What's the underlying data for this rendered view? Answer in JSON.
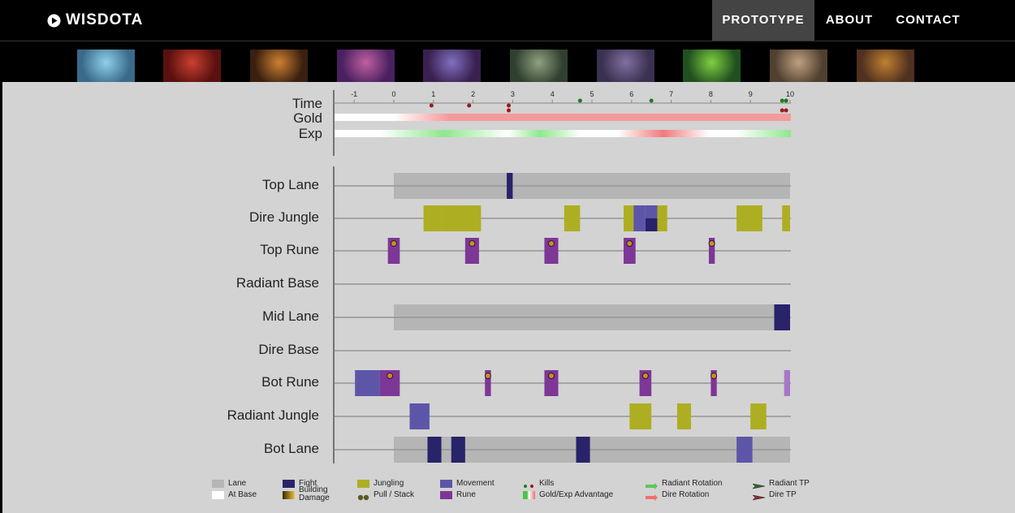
{
  "navbar": {
    "logo_text": "WISDOTA",
    "links": [
      {
        "label": "PROTOTYPE",
        "active": true
      },
      {
        "label": "ABOUT",
        "active": false
      },
      {
        "label": "CONTACT",
        "active": false
      }
    ]
  },
  "heroes": [
    {
      "name": "ancient-apparition",
      "colors": [
        "#3a6a8a",
        "#8fd0e8"
      ]
    },
    {
      "name": "queen-of-pain",
      "colors": [
        "#5a1010",
        "#c84030"
      ]
    },
    {
      "name": "anti-mage",
      "colors": [
        "#3a2010",
        "#d08030"
      ]
    },
    {
      "name": "dazzle",
      "colors": [
        "#4a2060",
        "#c060a0"
      ]
    },
    {
      "name": "faceless-void",
      "colors": [
        "#3a2050",
        "#8070c0"
      ]
    },
    {
      "name": "pugna",
      "colors": [
        "#304030",
        "#90a080"
      ]
    },
    {
      "name": "night-stalker",
      "colors": [
        "#3a3050",
        "#8070a0"
      ]
    },
    {
      "name": "venomancer",
      "colors": [
        "#205020",
        "#80d040"
      ]
    },
    {
      "name": "tusk",
      "colors": [
        "#504030",
        "#c0a080"
      ]
    },
    {
      "name": "alchemist",
      "colors": [
        "#503020",
        "#c08030"
      ]
    }
  ],
  "timeline": {
    "summary_labels": {
      "time": "Time",
      "gold": "Gold",
      "exp": "Exp"
    },
    "ticks": [
      "-1",
      "0",
      "1",
      "2",
      "3",
      "4",
      "5",
      "6",
      "7",
      "8",
      "9",
      "10"
    ],
    "kills": [
      {
        "t": 0.95,
        "side": "dire",
        "stack": 0
      },
      {
        "t": 1.9,
        "side": "dire",
        "stack": 0
      },
      {
        "t": 2.9,
        "side": "dire",
        "stack": 0
      },
      {
        "t": 2.9,
        "side": "dire",
        "stack": 1
      },
      {
        "t": 4.7,
        "side": "radiant",
        "stack": 0
      },
      {
        "t": 6.5,
        "side": "radiant",
        "stack": 0
      },
      {
        "t": 9.8,
        "side": "radiant",
        "stack": 0
      },
      {
        "t": 9.9,
        "side": "radiant",
        "stack": 0
      },
      {
        "t": 9.8,
        "side": "dire",
        "stack": 1
      },
      {
        "t": 9.9,
        "side": "dire",
        "stack": 1
      }
    ]
  },
  "rows": [
    {
      "label": "Top Lane",
      "events": [
        {
          "type": "lane",
          "start": 0,
          "end": 10
        },
        {
          "type": "fight",
          "start": 2.85,
          "end": 3.0
        }
      ]
    },
    {
      "label": "Dire Jungle",
      "events": [
        {
          "type": "jungle",
          "start": 0.75,
          "end": 1.2
        },
        {
          "type": "jungle",
          "start": 1.2,
          "end": 1.65
        },
        {
          "type": "jungle",
          "start": 1.65,
          "end": 2.2
        },
        {
          "type": "jungle",
          "start": 4.3,
          "end": 4.7
        },
        {
          "type": "jungle",
          "start": 5.8,
          "end": 6.05
        },
        {
          "type": "movement",
          "start": 6.05,
          "end": 6.35
        },
        {
          "type": "movement",
          "start": 6.35,
          "end": 6.65,
          "part": "top"
        },
        {
          "type": "fight",
          "start": 6.35,
          "end": 6.65,
          "part": "bottom"
        },
        {
          "type": "jungle",
          "start": 6.65,
          "end": 6.9
        },
        {
          "type": "jungle",
          "start": 8.65,
          "end": 9.3
        },
        {
          "type": "jungle",
          "start": 9.8,
          "end": 10.0
        }
      ]
    },
    {
      "label": "Top Rune",
      "events": [
        {
          "type": "rune",
          "start": -0.15,
          "end": 0.15,
          "icon": true
        },
        {
          "type": "rune",
          "start": 1.8,
          "end": 2.15,
          "icon": true
        },
        {
          "type": "rune",
          "start": 3.8,
          "end": 4.15,
          "icon": true
        },
        {
          "type": "rune",
          "start": 5.8,
          "end": 6.1,
          "icon": true
        },
        {
          "type": "rune",
          "start": 7.95,
          "end": 8.1,
          "icon": true
        }
      ]
    },
    {
      "label": "Radiant Base",
      "events": []
    },
    {
      "label": "Mid Lane",
      "events": [
        {
          "type": "lane",
          "start": 0,
          "end": 10
        },
        {
          "type": "fight",
          "start": 9.6,
          "end": 10.0
        }
      ]
    },
    {
      "label": "Dire Base",
      "events": []
    },
    {
      "label": "Bot Rune",
      "events": [
        {
          "type": "movement",
          "start": -0.98,
          "end": -0.35
        },
        {
          "type": "rune",
          "start": -0.35,
          "end": 0.15,
          "icon": true
        },
        {
          "type": "rune",
          "start": 2.3,
          "end": 2.45,
          "icon": true
        },
        {
          "type": "rune",
          "start": 3.8,
          "end": 4.15,
          "icon": true
        },
        {
          "type": "rune",
          "start": 6.2,
          "end": 6.5,
          "icon": true
        },
        {
          "type": "rune",
          "start": 8.0,
          "end": 8.15,
          "icon": true
        },
        {
          "type": "rune-light",
          "start": 9.85,
          "end": 10.0
        }
      ]
    },
    {
      "label": "Radiant Jungle",
      "events": [
        {
          "type": "movement",
          "start": 0.4,
          "end": 0.9
        },
        {
          "type": "jungle",
          "start": 5.95,
          "end": 6.5
        },
        {
          "type": "jungle",
          "start": 7.15,
          "end": 7.5
        },
        {
          "type": "jungle",
          "start": 9.0,
          "end": 9.4
        }
      ]
    },
    {
      "label": "Bot Lane",
      "events": [
        {
          "type": "lane",
          "start": 0,
          "end": 10
        },
        {
          "type": "fight",
          "start": 0.85,
          "end": 1.2
        },
        {
          "type": "fight",
          "start": 1.45,
          "end": 1.8
        },
        {
          "type": "fight",
          "start": 4.6,
          "end": 4.95
        },
        {
          "type": "movement",
          "start": 8.65,
          "end": 9.05
        }
      ]
    }
  ],
  "legend": [
    {
      "label": "Lane",
      "key": "lane"
    },
    {
      "label": "At Base",
      "key": "base"
    },
    {
      "label": "Fight",
      "key": "fight"
    },
    {
      "label": "Building Damage",
      "key": "building"
    },
    {
      "label": "Jungling",
      "key": "jungle"
    },
    {
      "label": "Pull / Stack",
      "key": "pull"
    },
    {
      "label": "Movement",
      "key": "movement"
    },
    {
      "label": "Rune",
      "key": "rune"
    },
    {
      "label": "Kills",
      "key": "kills"
    },
    {
      "label": "Gold/Exp Advantage",
      "key": "advantage"
    },
    {
      "label": "Radiant Rotation",
      "key": "radiant-rotation"
    },
    {
      "label": "Dire Rotation",
      "key": "dire-rotation"
    },
    {
      "label": "Radiant TP",
      "key": "radiant-tp"
    },
    {
      "label": "Dire TP",
      "key": "dire-tp"
    }
  ],
  "colors": {
    "lane": "#b5b5b5",
    "fight": "#28236a",
    "jungle": "#aeae22",
    "movement": "#5d56a8",
    "rune": "#7d3796",
    "rune_light": "#a876c8",
    "kill_radiant": "#1f7a1f",
    "kill_dire": "#9a1b1b",
    "gold": "#f59a9a",
    "exp_green": "#8ee88e",
    "exp_red": "#f27a7a"
  }
}
